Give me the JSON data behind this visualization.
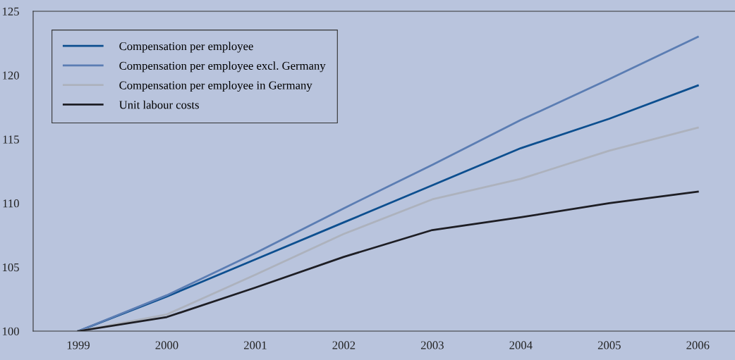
{
  "chart_data": {
    "type": "line",
    "categories": [
      "1999",
      "2000",
      "2001",
      "2002",
      "2003",
      "2004",
      "2005",
      "2006"
    ],
    "series": [
      {
        "name": "Compensation per employee",
        "color": "#0d4f8f",
        "values": [
          100,
          102.7,
          105.6,
          108.5,
          111.4,
          114.3,
          116.6,
          119.2
        ]
      },
      {
        "name": "Compensation per employee excl. Germany",
        "color": "#5b7db3",
        "values": [
          100,
          102.8,
          106.1,
          109.6,
          113.0,
          116.5,
          119.7,
          123.0
        ]
      },
      {
        "name": "Compensation per employee in Germany",
        "color": "#adb2bd",
        "values": [
          100,
          101.3,
          104.4,
          107.6,
          110.3,
          111.9,
          114.1,
          115.9
        ]
      },
      {
        "name": "Unit labour costs",
        "color": "#1e1e24",
        "values": [
          100,
          101.1,
          103.4,
          105.8,
          107.9,
          108.9,
          110.0,
          110.9
        ]
      }
    ],
    "ylim": [
      100,
      125
    ],
    "yticks": [
      100,
      105,
      110,
      115,
      120,
      125
    ],
    "grid": false,
    "legend": "top left",
    "marker": "none",
    "line_style": "solid"
  }
}
